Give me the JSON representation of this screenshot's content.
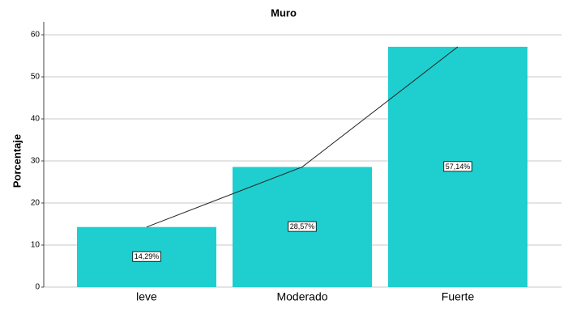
{
  "chart_data": {
    "type": "bar",
    "title": "Muro",
    "y_label": "Porcentaje",
    "categories": [
      "leve",
      "Moderado",
      "Fuerte"
    ],
    "values": [
      14.29,
      28.57,
      57.14
    ],
    "value_labels": [
      "14,29%",
      "28,57%",
      "57,14%"
    ],
    "color": "#1fcece",
    "line_color": "#222222",
    "ylim": [
      0,
      60
    ],
    "yticks": [
      0,
      10,
      20,
      30,
      40,
      50,
      60
    ],
    "grid": true
  }
}
